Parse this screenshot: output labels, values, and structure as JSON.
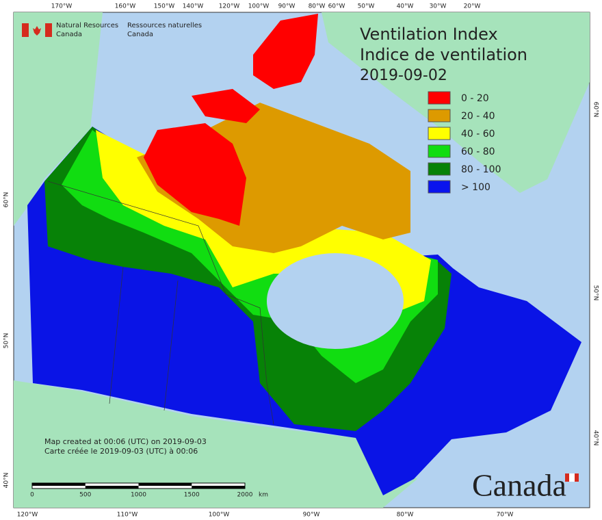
{
  "header": {
    "agency_en": "Natural Resources",
    "agency_en2": "Canada",
    "agency_fr": "Ressources naturelles",
    "agency_fr2": "Canada"
  },
  "title": {
    "line1": "Ventilation Index",
    "line2": "Indice de ventilation",
    "date": "2019-09-02"
  },
  "legend": [
    {
      "label": "0 - 20",
      "color": "#ff0000"
    },
    {
      "label": "20 - 40",
      "color": "#dd9a00"
    },
    {
      "label": "40 - 60",
      "color": "#ffff00"
    },
    {
      "label": "60 - 80",
      "color": "#11dd11"
    },
    {
      "label": "80 - 100",
      "color": "#078207"
    },
    {
      "label": "> 100",
      "color": "#0a14ee"
    }
  ],
  "graticule": {
    "top": [
      "170°W",
      "160°W",
      "150°W",
      "140°W",
      "120°W",
      "100°W",
      "90°W",
      "80°W",
      "60°W",
      "50°W",
      "40°W",
      "30°W",
      "20°W"
    ],
    "bottom": [
      "120°W",
      "110°W",
      "100°W",
      "90°W",
      "80°W",
      "70°W"
    ],
    "left": [
      "60°N",
      "50°N",
      "40°N"
    ],
    "right": [
      "60°N",
      "50°N",
      "40°N"
    ]
  },
  "credit": {
    "line1": "Map created at 00:06 (UTC) on 2019-09-03",
    "line2": "Carte créée le 2019-09-03 (UTC) à 00:06"
  },
  "scale": {
    "ticks": [
      0,
      500,
      1000,
      1500,
      2000
    ],
    "unit": "km"
  },
  "wordmark": "Canada"
}
